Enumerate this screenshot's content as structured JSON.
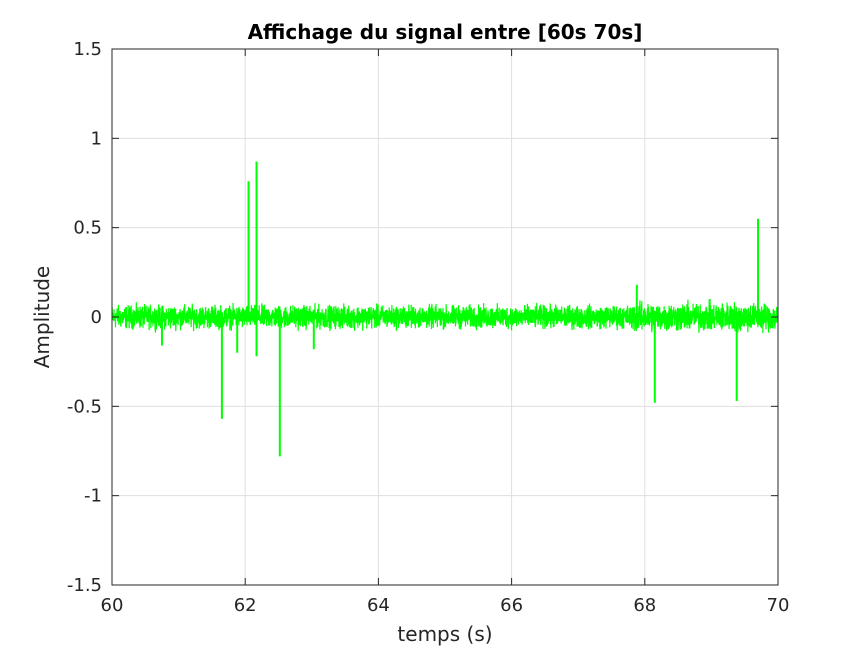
{
  "chart_data": {
    "type": "line",
    "title": "Affichage du signal entre [60s 70s]",
    "xlabel": "temps (s)",
    "ylabel": "Amplitude",
    "xlim": [
      60,
      70
    ],
    "ylim": [
      -1.5,
      1.5
    ],
    "xticks": [
      60,
      62,
      64,
      66,
      68,
      70
    ],
    "yticks": [
      -1.5,
      -1,
      -0.5,
      0,
      0.5,
      1,
      1.5
    ],
    "xtick_labels": [
      "60",
      "62",
      "64",
      "66",
      "68",
      "70"
    ],
    "ytick_labels": [
      "-1.5",
      "-1",
      "-0.5",
      "0",
      "0.5",
      "1",
      "1.5"
    ],
    "grid": true,
    "line_color": "#00ff00",
    "noise_band": {
      "lower": -0.08,
      "upper": 0.08
    },
    "spikes": [
      {
        "x": 61.65,
        "y": -0.57
      },
      {
        "x": 61.88,
        "y": -0.2
      },
      {
        "x": 62.05,
        "y": 0.76
      },
      {
        "x": 62.17,
        "y": 0.87
      },
      {
        "x": 62.17,
        "y": -0.22
      },
      {
        "x": 62.52,
        "y": -0.78
      },
      {
        "x": 63.03,
        "y": -0.18
      },
      {
        "x": 60.75,
        "y": -0.16
      },
      {
        "x": 67.88,
        "y": 0.18
      },
      {
        "x": 68.15,
        "y": -0.48
      },
      {
        "x": 69.38,
        "y": -0.47
      },
      {
        "x": 69.7,
        "y": 0.55
      }
    ]
  }
}
